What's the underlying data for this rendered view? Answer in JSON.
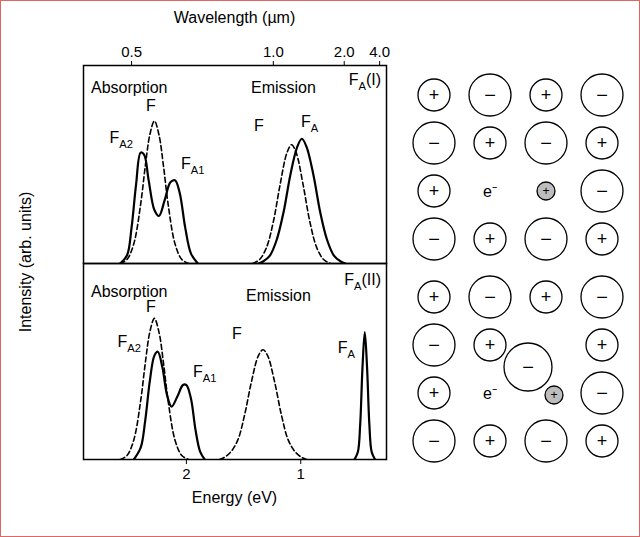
{
  "chart_data": [
    {
      "type": "line",
      "title": {
        "text": "F",
        "sub": "A",
        "after": "(I)"
      },
      "x2label": "Wavelength (µm)",
      "ylabel": "Intensity (arb. units)",
      "xlim": [
        2.9,
        0.25
      ],
      "x2ticks": [
        0.5,
        {
          "value": 1,
          "label": "1.0"
        },
        {
          "value": 2,
          "label": "2.0"
        },
        {
          "value": 4,
          "label": "4.0"
        }
      ],
      "ylim": [
        0,
        1
      ],
      "yticks": [],
      "tick_labels": "x",
      "annotations": [
        {
          "text": "Absorption"
        },
        {
          "text": "F"
        },
        {
          "text": "F",
          "sub": "A2"
        },
        {
          "text": "F",
          "sub": "A1"
        },
        {
          "text": "Emission"
        },
        {
          "text": "F"
        },
        {
          "text": "F",
          "sub": "A"
        }
      ],
      "series": [
        {
          "color": "#000000",
          "line_style": "dashed",
          "x": [
            2.58,
            2.52,
            2.46,
            2.4,
            2.36,
            2.32,
            2.28,
            2.24,
            2.2,
            2.16,
            2.1,
            2.04,
            1.98
          ],
          "values": [
            0,
            0.02,
            0.1,
            0.3,
            0.49,
            0.65,
            0.72,
            0.65,
            0.49,
            0.3,
            0.1,
            0.02,
            0
          ]
        },
        {
          "color": "#000000",
          "line_style": "solid",
          "x": [
            2.58,
            2.52,
            2.48,
            2.44,
            2.4,
            2.37,
            2.33,
            2.28,
            2.24,
            2.19,
            2.14,
            2.1,
            2.06,
            2.01,
            1.96,
            1.9
          ],
          "values": [
            0,
            0.04,
            0.18,
            0.4,
            0.56,
            0.55,
            0.42,
            0.27,
            0.24,
            0.32,
            0.41,
            0.42,
            0.36,
            0.18,
            0.05,
            0
          ]
        },
        {
          "color": "#000000",
          "line_style": "dashed",
          "x": [
            1.42,
            1.36,
            1.3,
            1.24,
            1.18,
            1.12,
            1.08,
            1.04,
            0.98,
            0.92,
            0.86,
            0.8,
            0.74
          ],
          "values": [
            0,
            0.02,
            0.08,
            0.21,
            0.4,
            0.56,
            0.6,
            0.56,
            0.4,
            0.21,
            0.08,
            0.02,
            0
          ]
        },
        {
          "color": "#000000",
          "line_style": "solid",
          "x": [
            1.37,
            1.33,
            1.27,
            1.21,
            1.15,
            1.09,
            1.03,
            0.99,
            0.95,
            0.89,
            0.83,
            0.77,
            0.71,
            0.65,
            0.61
          ],
          "values": [
            0,
            0.01,
            0.04,
            0.12,
            0.26,
            0.45,
            0.59,
            0.63,
            0.59,
            0.45,
            0.26,
            0.12,
            0.04,
            0.01,
            0
          ]
        }
      ]
    },
    {
      "type": "line",
      "title": {
        "text": "F",
        "sub": "A",
        "after": "(II)"
      },
      "xlabel": "Energy (eV)",
      "xlim": [
        2.9,
        0.25
      ],
      "xticks": [
        2,
        1
      ],
      "ylim": [
        0,
        1
      ],
      "yticks": [],
      "tick_labels": "x",
      "annotations": [
        {
          "text": "Absorption"
        },
        {
          "text": "F"
        },
        {
          "text": "F",
          "sub": "A2"
        },
        {
          "text": "F",
          "sub": "A1"
        },
        {
          "text": "Emission"
        },
        {
          "text": "F"
        },
        {
          "text": "F",
          "sub": "A"
        }
      ],
      "series": [
        {
          "color": "#000000",
          "line_style": "dashed",
          "x": [
            2.58,
            2.52,
            2.46,
            2.4,
            2.36,
            2.32,
            2.28,
            2.24,
            2.2,
            2.16,
            2.1,
            2.04,
            1.98
          ],
          "values": [
            0,
            0.02,
            0.1,
            0.3,
            0.49,
            0.65,
            0.72,
            0.65,
            0.49,
            0.3,
            0.1,
            0.02,
            0
          ]
        },
        {
          "color": "#000000",
          "line_style": "solid",
          "x": [
            2.46,
            2.4,
            2.36,
            2.32,
            2.28,
            2.25,
            2.21,
            2.17,
            2.13,
            2.08,
            2.03,
            2.0,
            1.96,
            1.92,
            1.88,
            1.84
          ],
          "values": [
            0,
            0.06,
            0.2,
            0.4,
            0.53,
            0.55,
            0.47,
            0.33,
            0.27,
            0.32,
            0.38,
            0.38,
            0.31,
            0.15,
            0.04,
            0
          ]
        },
        {
          "color": "#000000",
          "line_style": "dashed",
          "x": [
            1.71,
            1.67,
            1.61,
            1.55,
            1.49,
            1.43,
            1.37,
            1.33,
            1.29,
            1.23,
            1.17,
            1.11,
            1.05,
            0.99,
            0.95
          ],
          "values": [
            0,
            0.01,
            0.04,
            0.1,
            0.23,
            0.4,
            0.53,
            0.56,
            0.53,
            0.4,
            0.23,
            0.1,
            0.04,
            0.01,
            0
          ]
        },
        {
          "color": "#000000",
          "line_style": "solid",
          "x": [
            0.53,
            0.5,
            0.48,
            0.46,
            0.44,
            0.42,
            0.4,
            0.38,
            0.35
          ],
          "values": [
            0,
            0.04,
            0.18,
            0.47,
            0.65,
            0.47,
            0.18,
            0.04,
            0
          ]
        }
      ]
    }
  ],
  "lattices": [
    {
      "ions": [
        [
          "+",
          "−",
          "+",
          "−"
        ],
        [
          "−",
          "+",
          "−",
          "+"
        ],
        [
          "+",
          "e⁻",
          "+",
          "−"
        ],
        [
          "−",
          "+",
          "−",
          "+"
        ]
      ],
      "impurity": [
        2,
        2
      ]
    },
    {
      "ions": [
        [
          "+",
          "−",
          "+",
          "−"
        ],
        [
          "−",
          "+",
          null,
          "+"
        ],
        [
          "+",
          "e⁻",
          "+",
          "−"
        ],
        [
          "−",
          "+",
          "−",
          "+"
        ]
      ],
      "impurity": [
        2,
        2
      ],
      "interstitial": "−"
    }
  ]
}
